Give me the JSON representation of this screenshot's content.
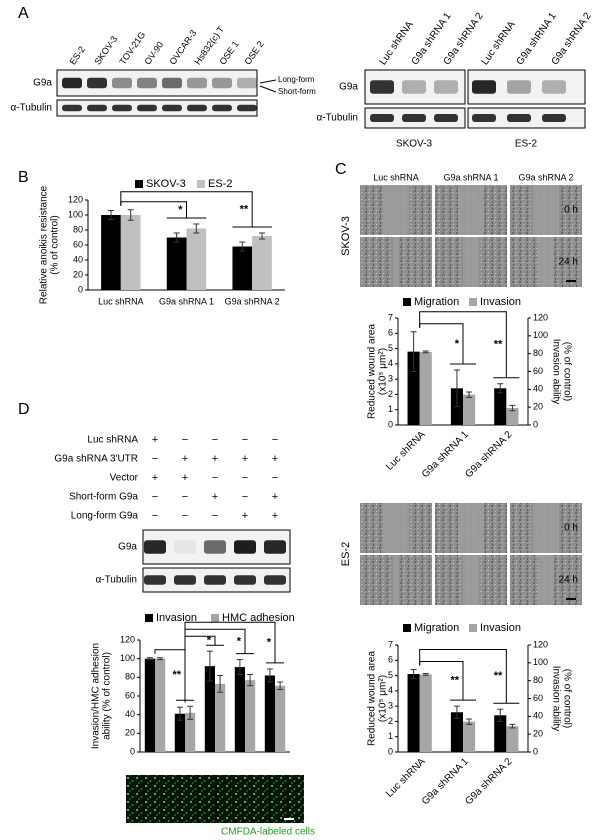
{
  "panel_a": {
    "label": "A",
    "left_blot": {
      "lanes": [
        "ES-2",
        "SKOV-3",
        "TOV-21G",
        "OV-90",
        "OVCAR-3",
        "Hs832(c) T",
        "OSE 1",
        "OSE 2"
      ],
      "rows": [
        "G9a",
        "α-Tubulin"
      ],
      "annotations": [
        "Long-form",
        "Short-form"
      ]
    },
    "right_blot": {
      "lanes": [
        "Luc shRNA",
        "G9a shRNA 1",
        "G9a shRNA 2",
        "Luc shRNA",
        "G9a shRNA 1",
        "G9a shRNA 2"
      ],
      "rows": [
        "G9a",
        "α-Tubulin"
      ],
      "groups": [
        "SKOV-3",
        "ES-2"
      ]
    }
  },
  "panel_b": {
    "label": "B",
    "chart": {
      "type": "bar",
      "y_label": [
        "Relative anoikis resistance",
        "(% of control)"
      ],
      "categories": [
        "Luc shRNA",
        "G9a shRNA 1",
        "G9a shRNA 2"
      ],
      "series": [
        {
          "name": "SKOV-3",
          "color": "#000000",
          "values": [
            100,
            70,
            58
          ],
          "errors": [
            6,
            6,
            6
          ]
        },
        {
          "name": "ES-2",
          "color": "#c0c0c0",
          "values": [
            100,
            82,
            72
          ],
          "errors": [
            7,
            6,
            4
          ]
        }
      ],
      "ylim": [
        0,
        120
      ],
      "yticks": [
        0,
        20,
        40,
        60,
        80,
        100,
        120
      ],
      "significance": [
        "*",
        "**"
      ]
    }
  },
  "panel_c": {
    "label": "C",
    "images": [
      {
        "cell_line": "SKOV-3",
        "columns": [
          "Luc shRNA",
          "G9a shRNA 1",
          "G9a shRNA 2"
        ],
        "rows": [
          "0 h",
          "24 h"
        ]
      },
      {
        "cell_line": "ES-2",
        "rows": [
          "0 h",
          "24 h"
        ]
      }
    ],
    "charts": [
      {
        "type": "bar",
        "y_label": [
          "Reduced wound area",
          "(x10⁵ μm²)"
        ],
        "y2_label": [
          "Invasion ability",
          "(% of control)"
        ],
        "categories": [
          "Luc shRNA",
          "G9a shRNA 1",
          "G9a shRNA 2"
        ],
        "series": [
          {
            "name": "Migration",
            "color": "#000000",
            "values": [
              4.8,
              2.4,
              2.4
            ],
            "errors": [
              1.3,
              1.2,
              0.3
            ]
          },
          {
            "name": "Invasion",
            "color": "#a6a6a6",
            "axis": "y2",
            "values": [
              82,
              34,
              19
            ],
            "errors": [
              1,
              3,
              3
            ]
          }
        ],
        "ylim": [
          0,
          7
        ],
        "yticks": [
          0,
          1,
          2,
          3,
          4,
          5,
          6,
          7
        ],
        "y2lim": [
          0,
          120
        ],
        "y2ticks": [
          0,
          20,
          40,
          60,
          80,
          100,
          120
        ],
        "significance": [
          "*",
          "**"
        ]
      },
      {
        "type": "bar",
        "y_label": [
          "Reduced wound area",
          "(x10⁵ μm²)"
        ],
        "y2_label": [
          "Invasion ability",
          "(% of control)"
        ],
        "categories": [
          "Luc shRNA",
          "G9a shRNA 1",
          "G9a shRNA 2"
        ],
        "series": [
          {
            "name": "Migration",
            "color": "#000000",
            "values": [
              5.1,
              2.6,
              2.4
            ],
            "errors": [
              0.3,
              0.4,
              0.4
            ]
          },
          {
            "name": "Invasion",
            "color": "#a6a6a6",
            "axis": "y2",
            "values": [
              87,
              34,
              29
            ],
            "errors": [
              1,
              3,
              2
            ]
          }
        ],
        "ylim": [
          0,
          7
        ],
        "yticks": [
          0,
          1,
          2,
          3,
          4,
          5,
          6,
          7
        ],
        "y2lim": [
          0,
          120
        ],
        "y2ticks": [
          0,
          20,
          40,
          60,
          80,
          100,
          120
        ],
        "significance": [
          "**",
          "**"
        ]
      }
    ]
  },
  "panel_d": {
    "label": "D",
    "treatments": {
      "rows": [
        "Luc shRNA",
        "G9a shRNA 3'UTR",
        "Vector",
        "Short-form G9a",
        "Long-form G9a"
      ],
      "marks": [
        [
          "+",
          "−",
          "−",
          "−",
          "−"
        ],
        [
          "−",
          "+",
          "+",
          "+",
          "+"
        ],
        [
          "+",
          "+",
          "−",
          "−",
          "−"
        ],
        [
          "−",
          "−",
          "+",
          "−",
          "+"
        ],
        [
          "−",
          "−",
          "−",
          "+",
          "+"
        ]
      ]
    },
    "blot": {
      "rows": [
        "G9a",
        "α-Tubulin"
      ]
    },
    "chart": {
      "type": "bar",
      "y_label": [
        "Invasion/HMC adhesion",
        "ability (% of control)"
      ],
      "series": [
        {
          "name": "Invasion",
          "color": "#000000",
          "values": [
            100,
            41,
            92,
            91,
            82
          ],
          "errors": [
            1,
            7,
            16,
            8,
            7
          ]
        },
        {
          "name": "HMC adhesion",
          "color": "#a6a6a6",
          "values": [
            100,
            42,
            73,
            77,
            71
          ],
          "errors": [
            1,
            7,
            9,
            6,
            4
          ]
        }
      ],
      "ylim": [
        0,
        120
      ],
      "yticks": [
        0,
        20,
        40,
        60,
        80,
        100,
        120
      ],
      "significance": [
        "**",
        "*",
        "*",
        "*"
      ]
    },
    "caption": "CMFDA-labeled cells"
  }
}
